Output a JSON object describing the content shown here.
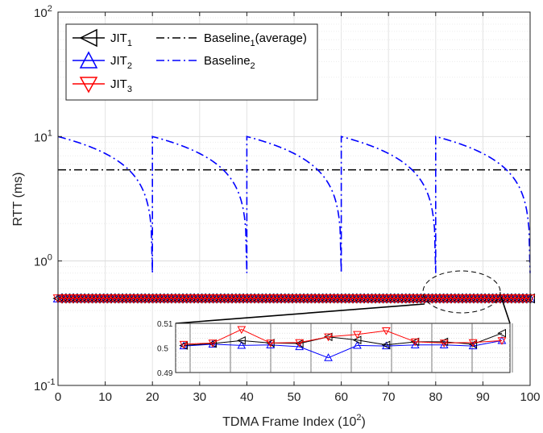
{
  "chart_data": {
    "type": "line",
    "title": "",
    "xlabel": "TDMA Frame Index (10",
    "xlabel_sup": "2",
    "xlabel_close": ")",
    "ylabel": "RTT (ms)",
    "xlim": [
      0,
      100
    ],
    "ylim_log10": [
      -1,
      2
    ],
    "yscale": "log",
    "grid": true,
    "legend_position": "top-left",
    "x_ticks": [
      "0",
      "10",
      "20",
      "30",
      "40",
      "50",
      "60",
      "70",
      "80",
      "90",
      "100"
    ],
    "y_ticks": [
      {
        "base": "10",
        "exp": "-1"
      },
      {
        "base": "10",
        "exp": "0"
      },
      {
        "base": "10",
        "exp": "1"
      },
      {
        "base": "10",
        "exp": "2"
      }
    ],
    "series": [
      {
        "legend": "JIT",
        "sub": "1",
        "color": "#000000",
        "marker": "triangle-left",
        "style": "solid",
        "value": 0.5
      },
      {
        "legend": "JIT",
        "sub": "2",
        "color": "#0000ff",
        "marker": "triangle-up",
        "style": "solid",
        "value": 0.5
      },
      {
        "legend": "JIT",
        "sub": "3",
        "color": "#ff0000",
        "marker": "triangle-down",
        "style": "solid",
        "value": 0.5
      },
      {
        "legend": "Baseline",
        "sub": "1",
        "suffix": "(average)",
        "color": "#000000",
        "style": "dashdot",
        "value": 5.4
      },
      {
        "legend": "Baseline",
        "sub": "2",
        "color": "#0000ff",
        "style": "dashdot",
        "sawtooth": {
          "period": 20,
          "start": 10,
          "min": 0.8
        }
      }
    ],
    "inset": {
      "yticks": [
        "0.51",
        "0.5",
        "0.49"
      ],
      "ylim": [
        0.49,
        0.51
      ],
      "jit1": [
        0.501,
        0.5018,
        0.503,
        0.502,
        0.5018,
        0.5045,
        0.5032,
        0.5012,
        0.5025,
        0.5025,
        0.5015,
        0.506
      ],
      "jit2": [
        0.5008,
        0.5015,
        0.501,
        0.5012,
        0.5005,
        0.496,
        0.501,
        0.5008,
        0.5012,
        0.5012,
        0.5008,
        0.503
      ],
      "jit3": [
        0.5015,
        0.502,
        0.5075,
        0.502,
        0.5022,
        0.5045,
        0.5055,
        0.507,
        0.5025,
        0.502,
        0.5022,
        0.503
      ]
    }
  }
}
